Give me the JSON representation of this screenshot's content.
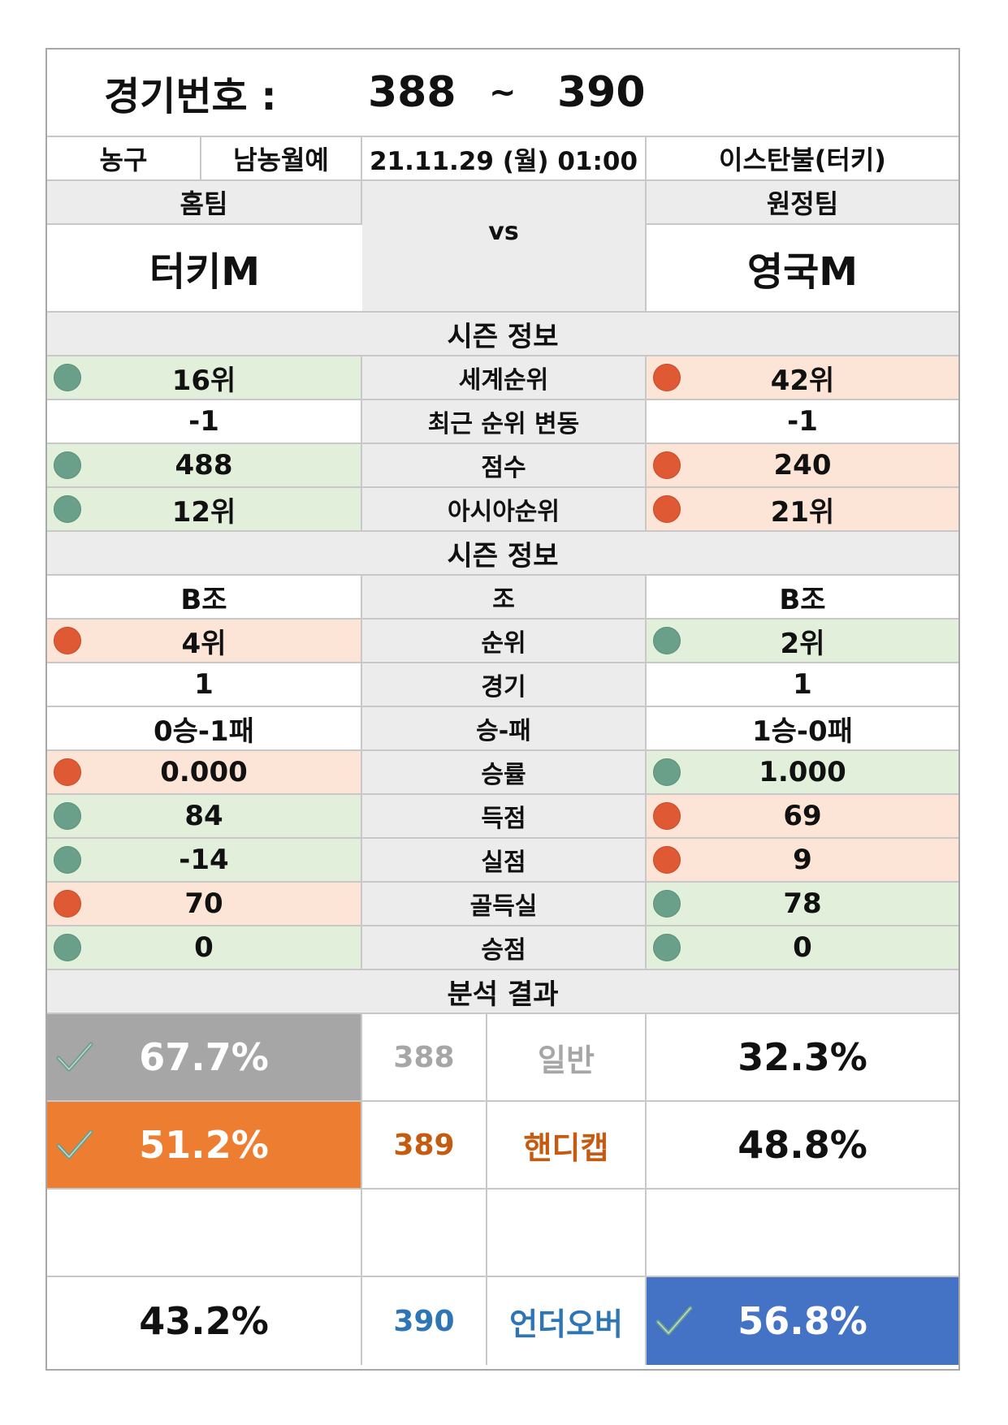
{
  "header": {
    "label": "경기번호 :",
    "from": "388",
    "sep": "~",
    "to": "390"
  },
  "info": {
    "sport": "농구",
    "league": "남농월예",
    "datetime": "21.11.29 (월) 01:00",
    "venue": "이스탄불(터키)"
  },
  "teams": {
    "home_label": "홈팀",
    "away_label": "원정팀",
    "home": "터키M",
    "away": "영국M",
    "vs": "vs"
  },
  "section1": "시즌 정보",
  "rank_rows": [
    {
      "home": "16위",
      "label": "세계순위",
      "away": "42위",
      "home_mark": "green",
      "away_mark": "red"
    },
    {
      "home": "-1",
      "label": "최근 순위 변동",
      "away": "-1",
      "home_mark": "none",
      "away_mark": "none"
    },
    {
      "home": "488",
      "label": "점수",
      "away": "240",
      "home_mark": "green",
      "away_mark": "red"
    },
    {
      "home": "12위",
      "label": "아시아순위",
      "away": "21위",
      "home_mark": "green",
      "away_mark": "red"
    }
  ],
  "section2": "시즌 정보",
  "group_rows": [
    {
      "home": "B조",
      "label": "조",
      "away": "B조",
      "home_mark": "none",
      "away_mark": "none"
    },
    {
      "home": "4위",
      "label": "순위",
      "away": "2위",
      "home_mark": "red",
      "away_mark": "green"
    },
    {
      "home": "1",
      "label": "경기",
      "away": "1",
      "home_mark": "none",
      "away_mark": "none"
    },
    {
      "home": "0승-1패",
      "label": "승-패",
      "away": "1승-0패",
      "home_mark": "none",
      "away_mark": "none"
    },
    {
      "home": "0.000",
      "label": "승률",
      "away": "1.000",
      "home_mark": "red",
      "away_mark": "green"
    },
    {
      "home": "84",
      "label": "득점",
      "away": "69",
      "home_mark": "green",
      "away_mark": "red"
    },
    {
      "home": "-14",
      "label": "실점",
      "away": "9",
      "home_mark": "green",
      "away_mark": "red"
    },
    {
      "home": "70",
      "label": "골득실",
      "away": "78",
      "home_mark": "red",
      "away_mark": "green"
    },
    {
      "home": "0",
      "label": "승점",
      "away": "0",
      "home_mark": "green",
      "away_mark": "green"
    }
  ],
  "section3": "분석 결과",
  "results": [
    {
      "home": "67.7%",
      "num": "388",
      "type": "일반",
      "away": "32.3%",
      "pick": "home",
      "pick_color": "#a6a6a6",
      "text_color": "#a6a6a6"
    },
    {
      "home": "51.2%",
      "num": "389",
      "type": "핸디캡",
      "away": "48.8%",
      "pick": "home",
      "pick_color": "#ed7d31",
      "text_color": "#c55a11"
    },
    {
      "home": "",
      "num": "",
      "type": "",
      "away": "",
      "pick": "none",
      "pick_color": "",
      "text_color": "#111111"
    },
    {
      "home": "43.2%",
      "num": "390",
      "type": "언더오버",
      "away": "56.8%",
      "pick": "away",
      "pick_color": "#4472c4",
      "text_color": "#2e75b6"
    }
  ],
  "colors": {
    "green_bg": "#e2efda",
    "red_bg": "#fce4d6",
    "green_dot": "#6aa08a",
    "red_dot": "#df5a34",
    "section_bg": "#ececec"
  },
  "icons": {
    "win_dot": "circle",
    "loss_dot": "circle",
    "pick": "check-icon"
  }
}
